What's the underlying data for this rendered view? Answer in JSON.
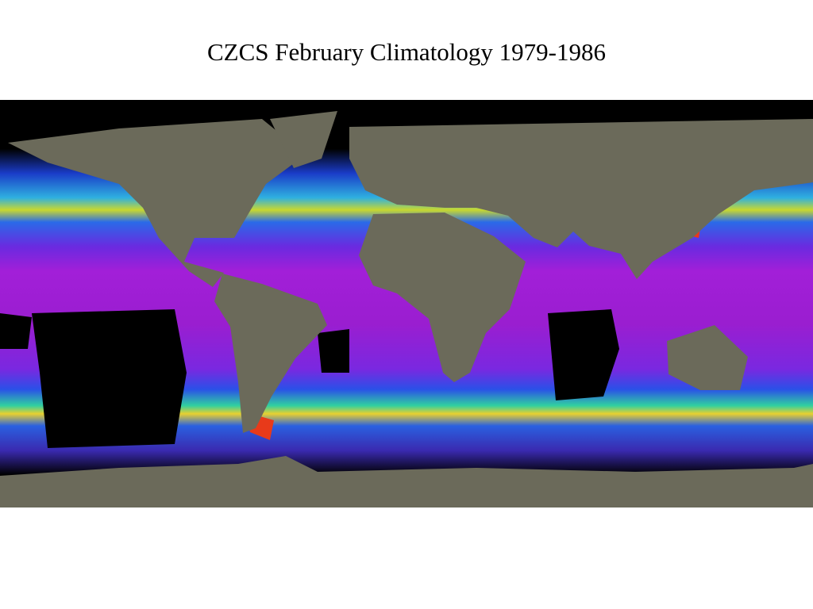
{
  "title": "CZCS February Climatology 1979-1986"
}
